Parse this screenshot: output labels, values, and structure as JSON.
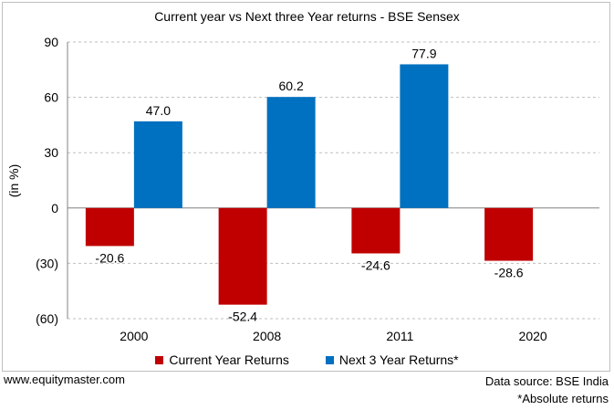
{
  "colors": {
    "current": "#c00000",
    "next3": "#0070c0",
    "grid": "#bfbfbf",
    "axis": "#808080"
  },
  "footer": {
    "website": "www.equitymaster.com",
    "source": "Data source: BSE India",
    "note": "*Absolute returns"
  },
  "chart_data": {
    "type": "bar",
    "title": "Current year vs Next three Year returns - BSE Sensex",
    "ylabel": "(in %)",
    "xlabel": "",
    "categories": [
      "2000",
      "2008",
      "2011",
      "2020"
    ],
    "series": [
      {
        "name": "Current Year Returns",
        "values": [
          -20.6,
          -52.4,
          -24.6,
          -28.6
        ],
        "labels": [
          "-20.6",
          "-52.4",
          "-24.6",
          "-28.6"
        ]
      },
      {
        "name": "Next 3 Year Returns*",
        "values": [
          47.0,
          60.2,
          77.9,
          null
        ],
        "labels": [
          "47.0",
          "60.2",
          "77.9",
          ""
        ]
      }
    ],
    "ylim": [
      -60,
      90
    ],
    "yticks": [
      90,
      60,
      30,
      0,
      -30,
      -60
    ],
    "yticklabels": [
      "90",
      "60",
      "30",
      "0",
      "(30)",
      "(60)"
    ],
    "grid": true,
    "legend": "bottom"
  }
}
